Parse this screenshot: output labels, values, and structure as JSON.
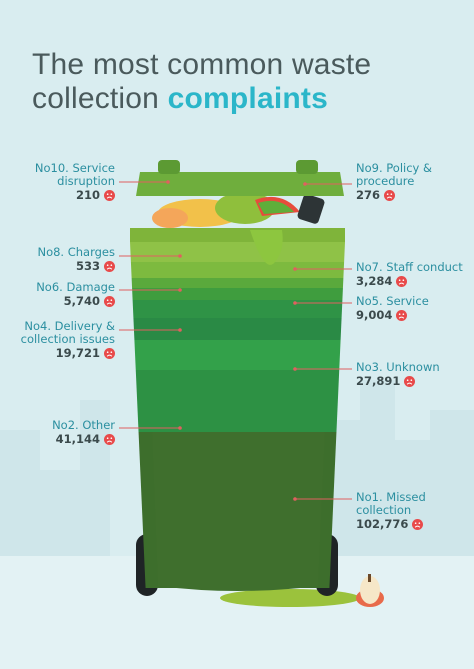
{
  "title": {
    "line1": "The most common waste",
    "line2_plain": "collection",
    "line2_accent": "complaints"
  },
  "colors": {
    "accent": "#2bb6c9",
    "label": "#2b8fa0",
    "value": "#3b4a4c",
    "connector": "#e06060",
    "sad": "#e84a4a"
  },
  "chart_data": {
    "type": "bar",
    "categories": [
      "No1. Missed collection",
      "No2. Other",
      "No3. Unknown",
      "No4. Delivery & collection issues",
      "No5. Service",
      "No6. Damage",
      "No7. Staff conduct",
      "No8. Charges",
      "No9. Policy & procedure",
      "No10. Service disruption"
    ],
    "values": [
      102776,
      41144,
      27891,
      19721,
      9004,
      5740,
      3284,
      533,
      276,
      210
    ],
    "value_labels": [
      "102,776",
      "41,144",
      "27,891",
      "19,721",
      "9,004",
      "5,740",
      "3,284",
      "533",
      "276",
      "210"
    ],
    "title": "The most common waste collection complaints",
    "xlabel": "",
    "ylabel": ""
  },
  "labels": [
    {
      "lines": [
        "No10. Service",
        "disruption"
      ],
      "value": "210"
    },
    {
      "lines": [
        "No9. Policy &",
        "procedure"
      ],
      "value": "276"
    },
    {
      "lines": [
        "No8. Charges"
      ],
      "value": "533"
    },
    {
      "lines": [
        "No7. Staff conduct"
      ],
      "value": "3,284"
    },
    {
      "lines": [
        "No6. Damage"
      ],
      "value": "5,740"
    },
    {
      "lines": [
        "No5. Service"
      ],
      "value": "9,004"
    },
    {
      "lines": [
        "No4. Delivery &",
        "collection issues"
      ],
      "value": "19,721"
    },
    {
      "lines": [
        "No3. Unknown"
      ],
      "value": "27,891"
    },
    {
      "lines": [
        "No2. Other"
      ],
      "value": "41,144"
    },
    {
      "lines": [
        "No1. Missed",
        "collection"
      ],
      "value": "102,776"
    }
  ]
}
